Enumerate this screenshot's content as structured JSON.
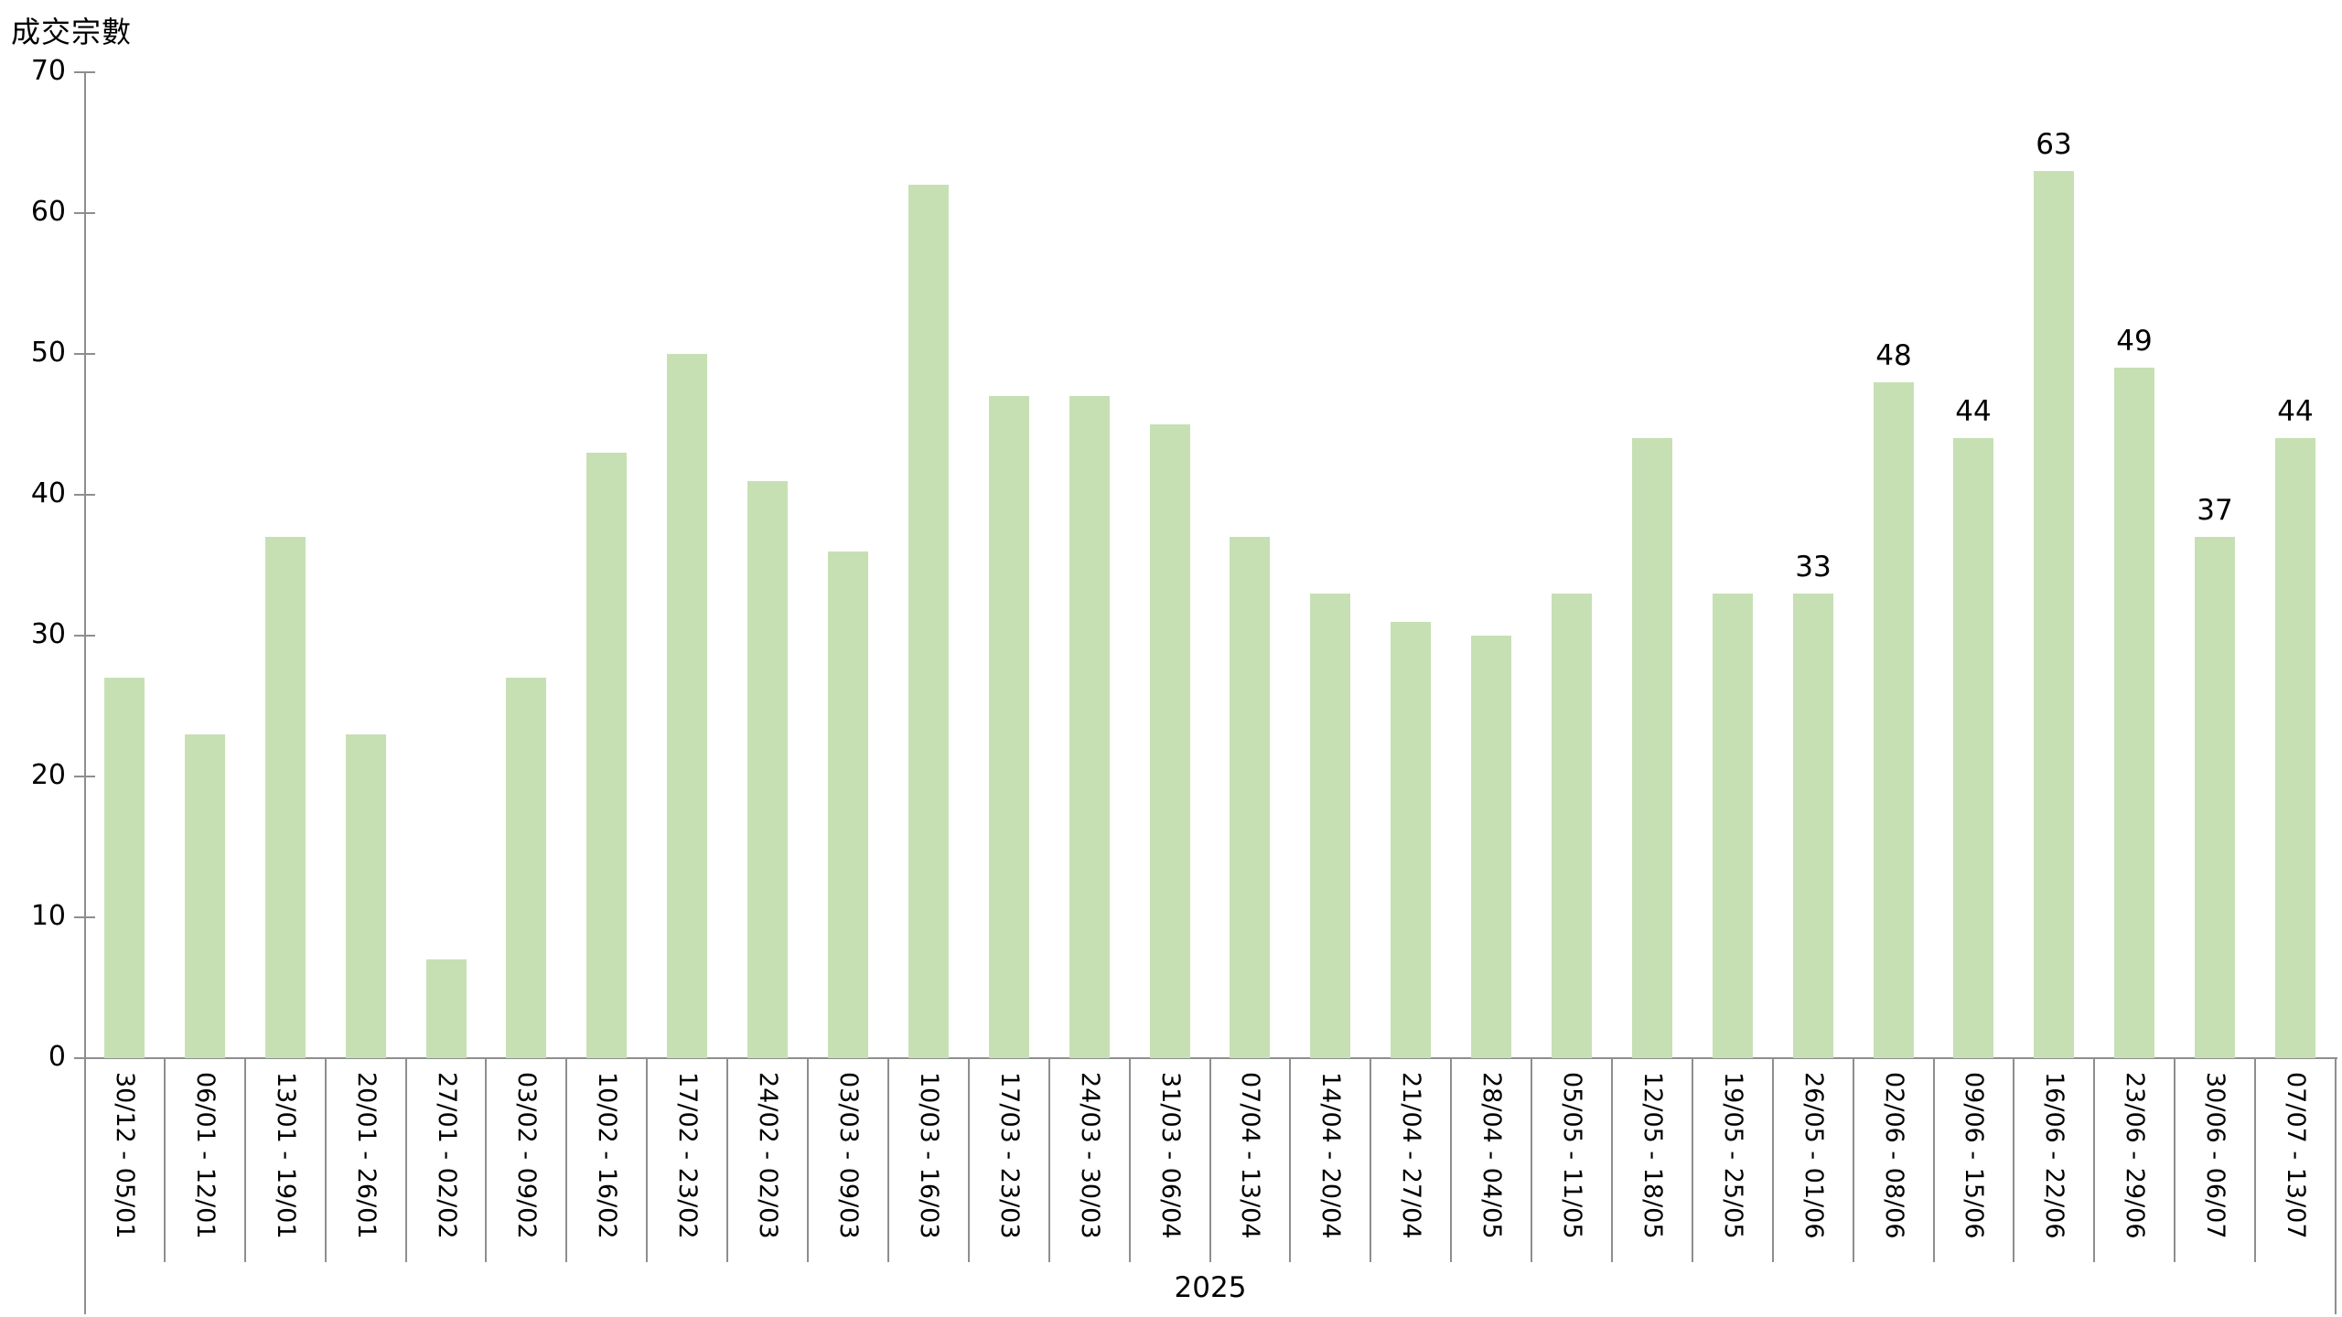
{
  "chart_data": {
    "type": "bar",
    "title": "",
    "ylabel": "成交宗數",
    "xlabel": "",
    "x_group_label": "2025",
    "ylim": [
      0,
      70
    ],
    "yticks": [
      0,
      10,
      20,
      30,
      40,
      50,
      60,
      70
    ],
    "grid": false,
    "legend": "none",
    "categories": [
      "30/12 - 05/01",
      "06/01 - 12/01",
      "13/01 - 19/01",
      "20/01 - 26/01",
      "27/01 - 02/02",
      "03/02 - 09/02",
      "10/02 - 16/02",
      "17/02 - 23/02",
      "24/02 - 02/03",
      "03/03 - 09/03",
      "10/03 - 16/03",
      "17/03 - 23/03",
      "24/03 - 30/03",
      "31/03 - 06/04",
      "07/04 - 13/04",
      "14/04 - 20/04",
      "21/04 - 27/04",
      "28/04 - 04/05",
      "05/05 - 11/05",
      "12/05 - 18/05",
      "19/05 - 25/05",
      "26/05 - 01/06",
      "02/06 - 08/06",
      "09/06 - 15/06",
      "16/06 - 22/06",
      "23/06 - 29/06",
      "30/06 - 06/07",
      "07/07 - 13/07"
    ],
    "values": [
      27,
      23,
      37,
      23,
      7,
      27,
      43,
      50,
      41,
      36,
      62,
      47,
      47,
      45,
      37,
      33,
      31,
      30,
      33,
      44,
      33,
      33,
      48,
      44,
      63,
      49,
      37,
      44
    ],
    "data_labels_shown_from_index": 21,
    "data_labels_values": [
      33,
      48,
      44,
      63,
      49,
      37,
      44
    ],
    "colors": {
      "bar": "#c6e0b4",
      "axis": "#8e8e8e",
      "text": "#000000",
      "background": "#ffffff"
    }
  }
}
